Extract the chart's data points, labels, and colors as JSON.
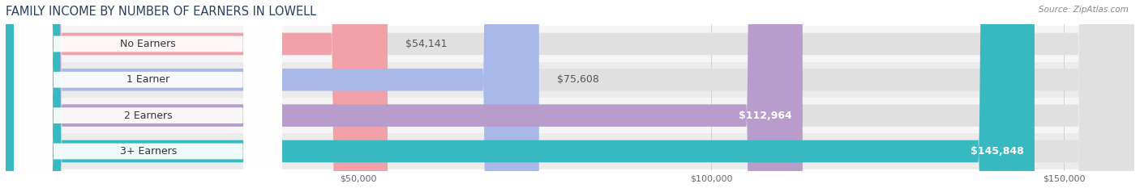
{
  "title": "FAMILY INCOME BY NUMBER OF EARNERS IN LOWELL",
  "source": "Source: ZipAtlas.com",
  "categories": [
    "No Earners",
    "1 Earner",
    "2 Earners",
    "3+ Earners"
  ],
  "values": [
    54141,
    75608,
    112964,
    145848
  ],
  "labels": [
    "$54,141",
    "$75,608",
    "$112,964",
    "$145,848"
  ],
  "bar_colors": [
    "#f2a0a8",
    "#a8b8e8",
    "#b89ccc",
    "#38b8c0"
  ],
  "label_in_bar": [
    false,
    false,
    true,
    true
  ],
  "xlim": [
    0,
    160000
  ],
  "xticks": [
    50000,
    100000,
    150000
  ],
  "xtick_labels": [
    "$50,000",
    "$100,000",
    "$150,000"
  ],
  "background_color": "#ffffff",
  "row_bg_even": "#f5f5f5",
  "row_bg_odd": "#ebebeb",
  "bar_bg_color": "#e0e0e0",
  "title_fontsize": 10.5,
  "cat_fontsize": 9,
  "val_fontsize": 9,
  "bar_height": 0.62,
  "figsize": [
    14.06,
    2.33
  ],
  "dpi": 100
}
